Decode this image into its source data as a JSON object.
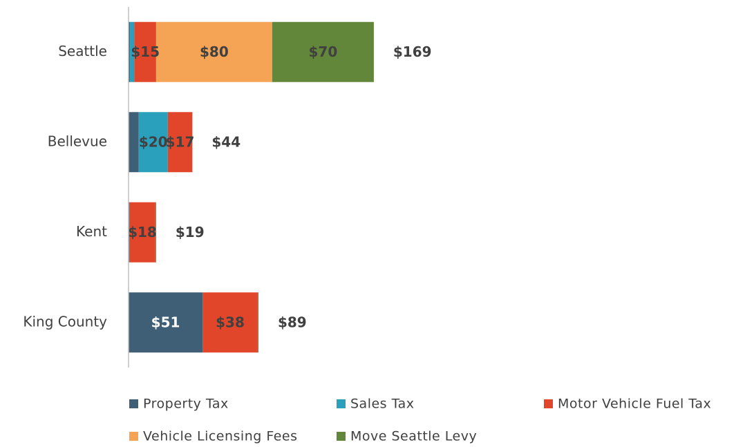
{
  "chart_data": {
    "type": "stacked_barh",
    "categories": [
      "Seattle",
      "Bellevue",
      "Kent",
      "King County"
    ],
    "series": [
      {
        "name": "Property Tax",
        "color": "#3f5f77",
        "values": [
          1,
          7,
          0.5,
          51
        ],
        "value_labels": [
          null,
          null,
          null,
          "$51"
        ]
      },
      {
        "name": "Sales Tax",
        "color": "#2aa0bd",
        "values": [
          3,
          20,
          0,
          0
        ],
        "value_labels": [
          null,
          "$20",
          null,
          null
        ]
      },
      {
        "name": "Motor Vehicle Fuel Tax",
        "color": "#e2462a",
        "values": [
          15,
          17,
          18,
          38
        ],
        "value_labels": [
          "$15",
          "$17",
          "$18",
          "$38"
        ]
      },
      {
        "name": "Vehicle Licensing Fees",
        "color": "#f5a354",
        "values": [
          80,
          0,
          0,
          0
        ],
        "value_labels": [
          "$80",
          null,
          null,
          null
        ]
      },
      {
        "name": "Move Seattle Levy",
        "color": "#62873a",
        "values": [
          70,
          0,
          0.5,
          0.5
        ],
        "value_labels": [
          "$70",
          null,
          null,
          null
        ]
      }
    ],
    "totals": [
      169,
      44,
      19,
      89
    ],
    "total_labels": [
      "$169",
      "$44",
      "$19",
      "$89"
    ],
    "xlim": [
      0,
      200
    ],
    "legend": "bottom"
  }
}
